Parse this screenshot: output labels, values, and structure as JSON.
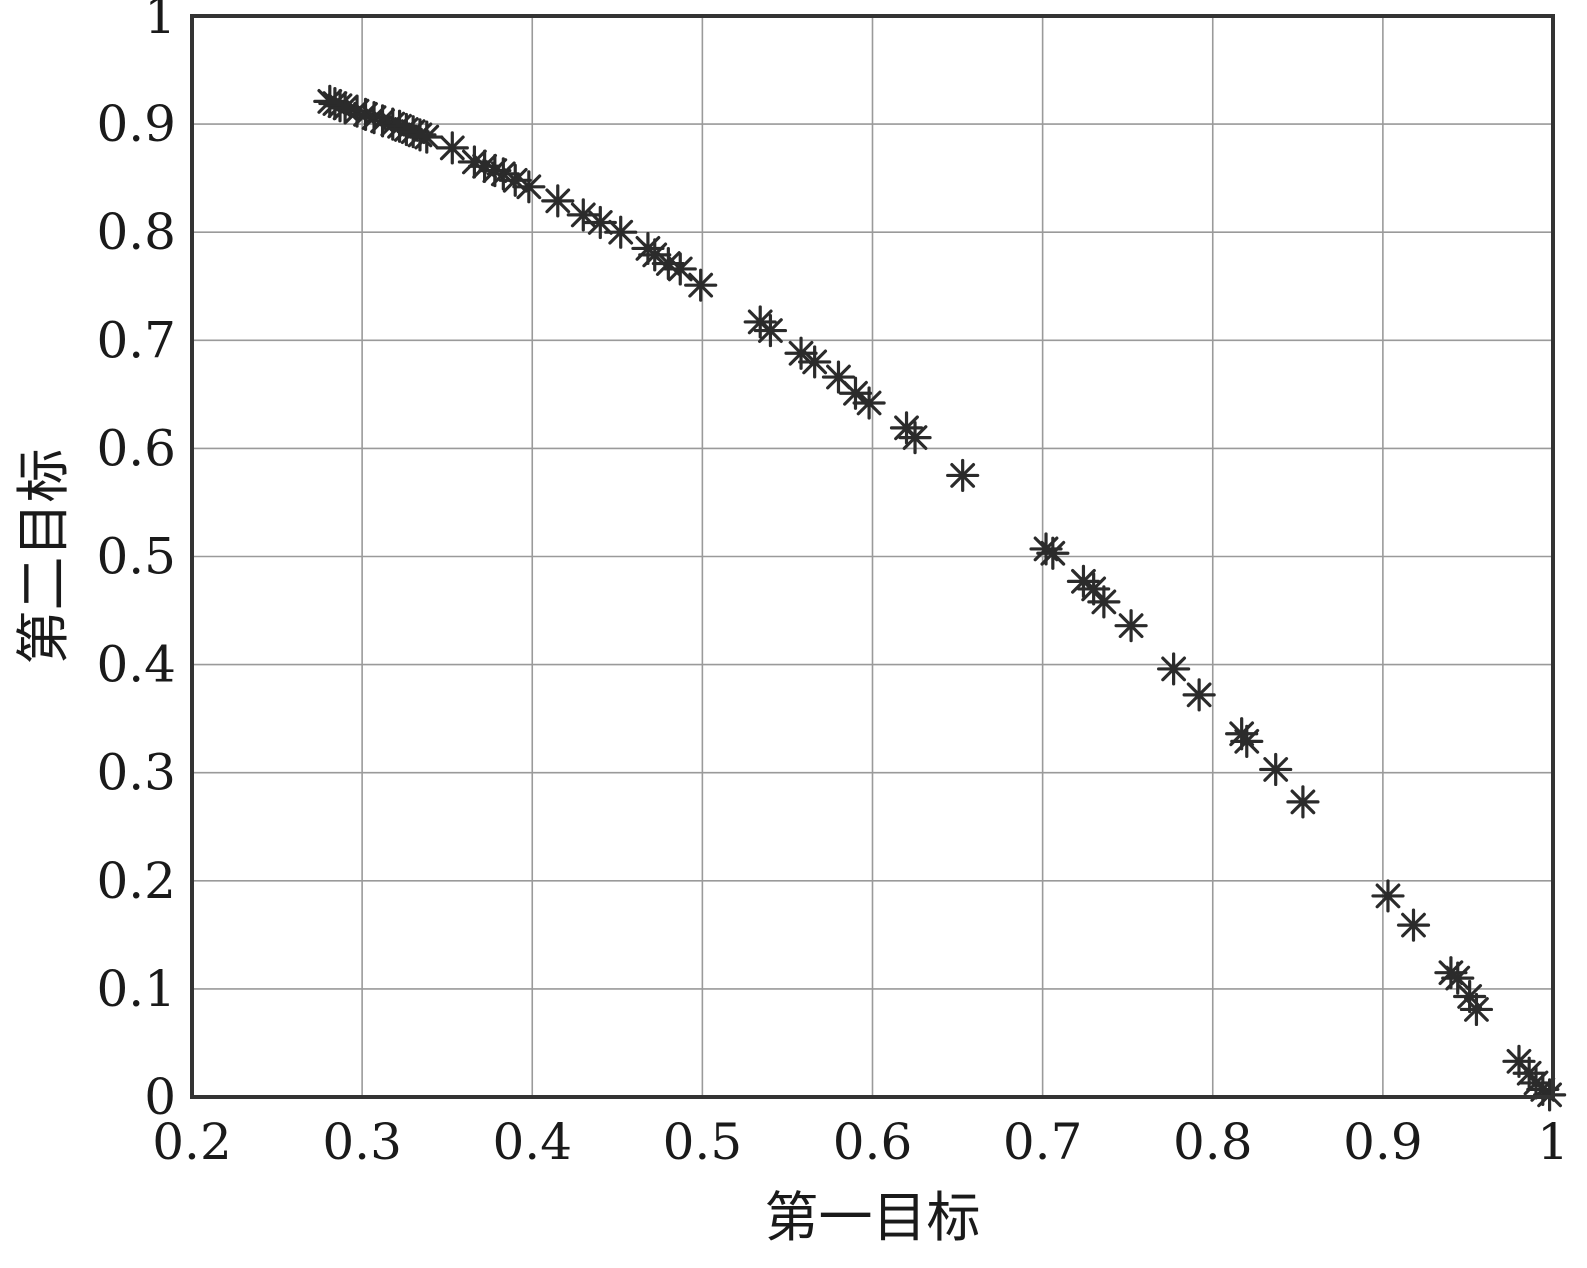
{
  "chart_data": {
    "type": "scatter",
    "title": "",
    "xlabel": "第一目标",
    "ylabel": "第二目标",
    "xlim": [
      0.2,
      1.0
    ],
    "ylim": [
      0,
      1.0
    ],
    "grid": true,
    "xticks": [
      "0.2",
      "0.3",
      "0.4",
      "0.5",
      "0.6",
      "0.7",
      "0.8",
      "0.9",
      "1"
    ],
    "yticks": [
      "0",
      "0.1",
      "0.2",
      "0.3",
      "0.4",
      "0.5",
      "0.6",
      "0.7",
      "0.8",
      "0.9",
      "1"
    ],
    "marker": "asterisk",
    "marker_color": "#2b2b2b",
    "series": [
      {
        "points": [
          [
            0.281,
            0.921
          ],
          [
            0.284,
            0.919
          ],
          [
            0.287,
            0.917
          ],
          [
            0.29,
            0.915
          ],
          [
            0.297,
            0.912
          ],
          [
            0.302,
            0.909
          ],
          [
            0.307,
            0.906
          ],
          [
            0.312,
            0.903
          ],
          [
            0.318,
            0.9
          ],
          [
            0.322,
            0.898
          ],
          [
            0.326,
            0.895
          ],
          [
            0.33,
            0.893
          ],
          [
            0.334,
            0.89
          ],
          [
            0.338,
            0.888
          ],
          [
            0.353,
            0.878
          ],
          [
            0.366,
            0.865
          ],
          [
            0.372,
            0.861
          ],
          [
            0.378,
            0.857
          ],
          [
            0.383,
            0.854
          ],
          [
            0.39,
            0.848
          ],
          [
            0.398,
            0.842
          ],
          [
            0.415,
            0.829
          ],
          [
            0.43,
            0.816
          ],
          [
            0.44,
            0.809
          ],
          [
            0.452,
            0.8
          ],
          [
            0.468,
            0.785
          ],
          [
            0.472,
            0.779
          ],
          [
            0.48,
            0.771
          ],
          [
            0.487,
            0.766
          ],
          [
            0.499,
            0.751
          ],
          [
            0.534,
            0.717
          ],
          [
            0.54,
            0.709
          ],
          [
            0.558,
            0.688
          ],
          [
            0.566,
            0.68
          ],
          [
            0.58,
            0.666
          ],
          [
            0.59,
            0.651
          ],
          [
            0.598,
            0.642
          ],
          [
            0.62,
            0.619
          ],
          [
            0.625,
            0.61
          ],
          [
            0.653,
            0.575
          ],
          [
            0.702,
            0.507
          ],
          [
            0.706,
            0.503
          ],
          [
            0.724,
            0.477
          ],
          [
            0.73,
            0.47
          ],
          [
            0.736,
            0.458
          ],
          [
            0.752,
            0.436
          ],
          [
            0.777,
            0.396
          ],
          [
            0.792,
            0.372
          ],
          [
            0.817,
            0.336
          ],
          [
            0.82,
            0.329
          ],
          [
            0.837,
            0.303
          ],
          [
            0.853,
            0.273
          ],
          [
            0.903,
            0.186
          ],
          [
            0.918,
            0.159
          ],
          [
            0.94,
            0.115
          ],
          [
            0.944,
            0.11
          ],
          [
            0.951,
            0.093
          ],
          [
            0.955,
            0.081
          ],
          [
            0.98,
            0.033
          ],
          [
            0.986,
            0.022
          ],
          [
            0.99,
            0.013
          ],
          [
            0.994,
            0.007
          ],
          [
            0.998,
            0.002
          ]
        ]
      }
    ]
  }
}
